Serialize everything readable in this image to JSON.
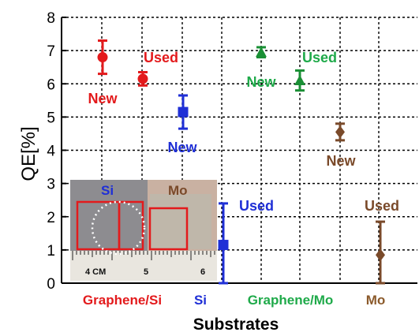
{
  "chart_data": {
    "type": "scatter",
    "title": "",
    "xlabel": "Substrates",
    "ylabel": "QE[%]",
    "ylim": [
      0,
      8
    ],
    "yticks": [
      0,
      1,
      2,
      3,
      4,
      5,
      6,
      7,
      8
    ],
    "grid": true,
    "categories": [
      {
        "label": "Graphene/Si",
        "color": "#e31a1c"
      },
      {
        "label": "Si",
        "color": "#1f2fd6"
      },
      {
        "label": "Graphene/Mo",
        "color": "#1faa4a"
      },
      {
        "label": "Mo",
        "color": "#8b5a2b"
      }
    ],
    "points": [
      {
        "category": "Graphene/Si",
        "label": "New",
        "y": 6.8,
        "err": 0.5,
        "marker": "circle",
        "color": "#e31a1c"
      },
      {
        "category": "Graphene/Si",
        "label": "Used",
        "y": 6.15,
        "err": 0.2,
        "marker": "circle",
        "color": "#e31a1c"
      },
      {
        "category": "Si",
        "label": "New",
        "y": 5.15,
        "err": 0.5,
        "marker": "square",
        "color": "#1f2fd6"
      },
      {
        "category": "Si",
        "label": "Used",
        "y": 1.15,
        "err": 1.25,
        "marker": "square",
        "color": "#1f2fd6"
      },
      {
        "category": "Graphene/Mo",
        "label": "New",
        "y": 6.95,
        "err": 0.15,
        "marker": "triangle",
        "color": "#1a8f35"
      },
      {
        "category": "Graphene/Mo",
        "label": "Used",
        "y": 6.1,
        "err": 0.3,
        "marker": "triangle",
        "color": "#1a8f35"
      },
      {
        "category": "Mo",
        "label": "New",
        "y": 4.55,
        "err": 0.25,
        "marker": "diamond",
        "color": "#7a4a2a"
      },
      {
        "category": "Mo",
        "label": "Used",
        "y": 0.85,
        "err": 1.0,
        "marker": "diamond",
        "color": "#7a4a2a"
      }
    ],
    "annotations": [
      {
        "text": "New",
        "color": "#e31a1c"
      },
      {
        "text": "Used",
        "color": "#e31a1c"
      },
      {
        "text": "New",
        "color": "#1f2fd6"
      },
      {
        "text": "Used",
        "color": "#1f2fd6"
      },
      {
        "text": "New",
        "color": "#1faa4a"
      },
      {
        "text": "Used",
        "color": "#1faa4a"
      },
      {
        "text": "New",
        "color": "#7a4a2a"
      },
      {
        "text": "Used",
        "color": "#7a4a2a"
      }
    ],
    "inset": {
      "label_left": "Si",
      "label_right": "Mo",
      "ruler_labels": [
        "4 CM",
        "5",
        "6"
      ]
    }
  }
}
